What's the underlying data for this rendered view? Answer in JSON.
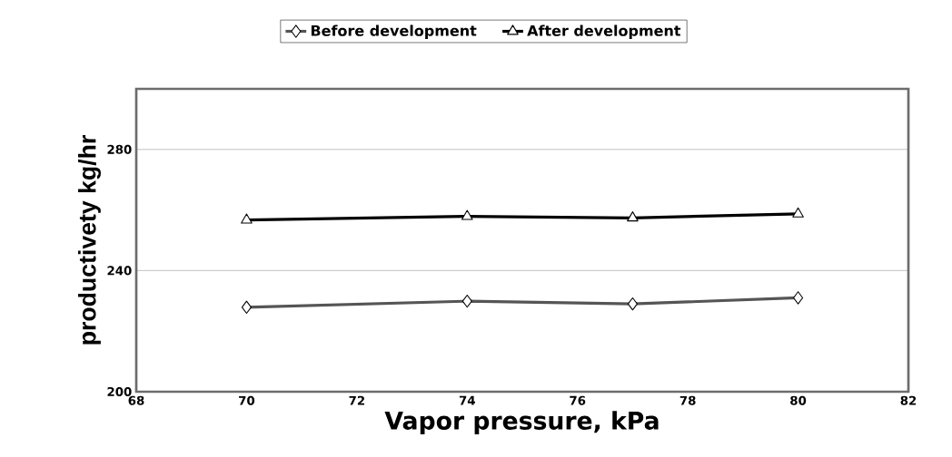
{
  "chart_data": {
    "type": "line",
    "xlabel": "Vapor pressure, kPa",
    "ylabel": "productivety kg/hr",
    "x": [
      70,
      74,
      77,
      80
    ],
    "series": [
      {
        "name": "Before development",
        "color": "#555555",
        "marker": "diamond",
        "values": [
          227.9,
          229.9,
          229.0,
          231.0
        ]
      },
      {
        "name": "After development",
        "color": "#000000",
        "marker": "triangle",
        "values": [
          256.7,
          257.9,
          257.4,
          258.7
        ]
      }
    ],
    "xlim": [
      68,
      82
    ],
    "xticks": [
      68,
      70,
      72,
      74,
      76,
      78,
      80,
      82
    ],
    "ylim": [
      200,
      300
    ],
    "yticks": [
      200,
      240,
      280
    ],
    "grid": "y",
    "legend": "top",
    "line_style": "solid"
  }
}
